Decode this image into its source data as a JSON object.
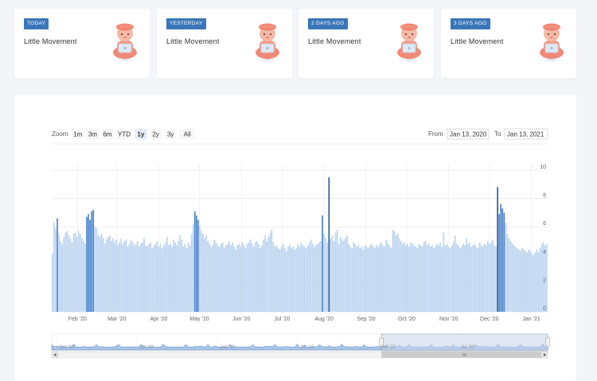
{
  "cards": [
    {
      "badge": "TODAY",
      "title": "Little Movement",
      "mascot": "mascot-laptop-icon"
    },
    {
      "badge": "YESTERDAY",
      "title": "Little Movement",
      "mascot": "mascot-laptop-icon"
    },
    {
      "badge": "2 DAYS AGO",
      "title": "Little Movement",
      "mascot": "mascot-laptop-icon"
    },
    {
      "badge": "3 DAYS AGO",
      "title": "Little Movement",
      "mascot": "mascot-laptop-icon"
    }
  ],
  "range_selector": {
    "zoom_label": "Zoom",
    "buttons": [
      "1m",
      "3m",
      "6m",
      "YTD",
      "1y",
      "2y",
      "3y",
      "All"
    ],
    "selected": "1y",
    "from_label": "From",
    "from_value": "Jan 13, 2020",
    "to_label": "To",
    "to_value": "Jan 13, 2021"
  },
  "colors": {
    "badge": "#3a76b8",
    "bar_light": "#bcd4f0",
    "bar_dark": "#4f86cc",
    "navigator_mask": "#dbe1ea"
  },
  "chart_data": {
    "type": "bar",
    "x_start": "2020-01-13",
    "x_end": "2021-01-13",
    "x_ticks": [
      "Feb '20",
      "Mar '20",
      "Apr '20",
      "May '20",
      "Jun '20",
      "Jul '20",
      "Aug '20",
      "Sep '20",
      "Oct '20",
      "Nov '20",
      "Dec '20",
      "Jan '21"
    ],
    "y_ticks": [
      0,
      2,
      4,
      6,
      8,
      10
    ],
    "ylim": [
      0,
      10
    ],
    "highlighted_bars": [
      {
        "date": "2020-08-19",
        "value": 9.5
      },
      {
        "date": "2020-12-03",
        "value": 8.8
      }
    ],
    "values": [
      4.1,
      6.3,
      5.9,
      6.6,
      5.5,
      5.0,
      4.8,
      5.3,
      5.6,
      5.7,
      5.4,
      5.2,
      4.9,
      5.5,
      5.6,
      5.3,
      5.7,
      5.5,
      5.2,
      5.0,
      4.8,
      6.7,
      6.9,
      6.5,
      7.1,
      7.2,
      6.0,
      5.9,
      5.4,
      5.3,
      5.5,
      5.2,
      4.8,
      5.1,
      5.3,
      5.4,
      5.0,
      5.2,
      4.9,
      5.1,
      4.7,
      4.9,
      5.2,
      4.8,
      5.0,
      5.1,
      4.6,
      4.8,
      5.1,
      4.9,
      4.7,
      4.8,
      5.0,
      4.6,
      4.8,
      4.9,
      5.2,
      4.7,
      4.6,
      4.8,
      4.9,
      4.5,
      4.7,
      4.8,
      5.0,
      4.6,
      4.8,
      4.5,
      4.7,
      4.9,
      5.3,
      4.7,
      4.8,
      4.6,
      5.1,
      4.9,
      4.7,
      5.0,
      5.4,
      5.1,
      4.6,
      4.8,
      4.5,
      4.9,
      4.7,
      5.5,
      6.2,
      7.1,
      6.8,
      6.5,
      6.1,
      5.7,
      5.5,
      5.2,
      5.4,
      5.0,
      4.8,
      4.6,
      4.7,
      5.1,
      4.9,
      4.7,
      4.6,
      4.8,
      4.9,
      4.5,
      4.7,
      4.8,
      5.0,
      4.7,
      4.9,
      4.6,
      4.4,
      4.7,
      4.8,
      4.6,
      4.9,
      4.7,
      4.5,
      4.8,
      4.9,
      5.1,
      4.8,
      4.6,
      4.9,
      5.0,
      4.8,
      4.5,
      4.7,
      5.1,
      5.4,
      5.0,
      5.3,
      5.6,
      5.8,
      4.9,
      4.6,
      4.7,
      4.5,
      4.4,
      4.6,
      4.8,
      4.5,
      4.3,
      4.6,
      4.7,
      4.5,
      4.6,
      4.4,
      4.5,
      4.8,
      4.6,
      4.9,
      4.7,
      4.6,
      4.5,
      4.7,
      4.9,
      5.1,
      4.8,
      4.6,
      4.7,
      4.8,
      4.9,
      5.0,
      6.8,
      5.5,
      5.2,
      4.9,
      9.5,
      5.2,
      5.4,
      5.0,
      5.6,
      5.8,
      4.8,
      5.3,
      5.1,
      5.0,
      5.2,
      5.4,
      4.8,
      4.6,
      4.5,
      4.9,
      4.8,
      4.6,
      4.7,
      4.5,
      4.6,
      4.4,
      4.7,
      4.6,
      4.5,
      4.7,
      4.8,
      4.6,
      4.5,
      4.7,
      4.6,
      4.8,
      4.9,
      4.7,
      4.6,
      5.1,
      4.8,
      4.7,
      4.5,
      5.8,
      5.7,
      5.4,
      5.5,
      5.2,
      5.0,
      4.8,
      4.9,
      4.7,
      4.8,
      4.6,
      4.9,
      4.8,
      4.7,
      4.6,
      4.5,
      4.8,
      4.7,
      4.6,
      4.9,
      5.0,
      4.7,
      4.8,
      4.6,
      4.7,
      4.5,
      4.6,
      4.8,
      4.7,
      4.9,
      4.6,
      5.6,
      4.7,
      4.8,
      4.6,
      4.5,
      4.7,
      4.9,
      5.4,
      4.8,
      4.7,
      4.5,
      4.6,
      4.8,
      4.7,
      5.2,
      4.8,
      4.9,
      4.6,
      4.7,
      4.8,
      4.6,
      4.5,
      4.9,
      4.7,
      4.6,
      4.8,
      4.7,
      5.0,
      4.8,
      4.9,
      5.1,
      4.7,
      4.6,
      8.8,
      6.9,
      7.6,
      7.3,
      7.0,
      6.3,
      5.5,
      5.2,
      5.0,
      4.8,
      4.7,
      4.6,
      4.5,
      4.4,
      4.3,
      4.5,
      4.4,
      4.3,
      4.2,
      4.4,
      4.3,
      4.1,
      4.0,
      4.2,
      4.4,
      4.2,
      4.5,
      4.8,
      4.9,
      4.7,
      4.8
    ],
    "navigator": {
      "x_ticks": [
        "Jan '18",
        "Jul '18",
        "Jan '19",
        "Jul '19",
        "Jan '20",
        "Jul '20"
      ]
    }
  }
}
